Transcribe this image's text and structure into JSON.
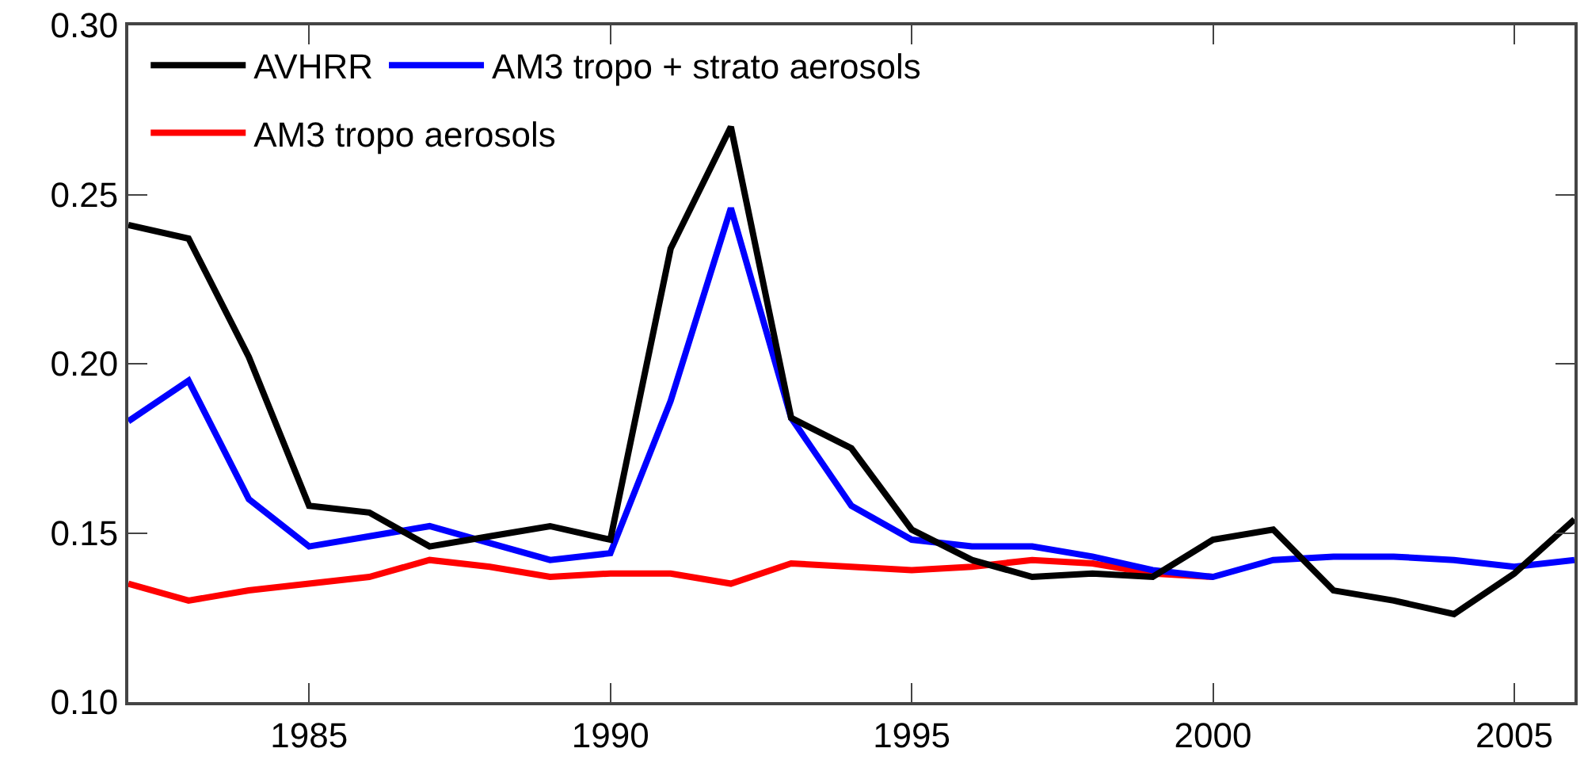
{
  "chart_data": {
    "type": "line",
    "x": [
      1982,
      1983,
      1984,
      1985,
      1986,
      1987,
      1988,
      1989,
      1990,
      1991,
      1992,
      1993,
      1994,
      1995,
      1996,
      1997,
      1998,
      1999,
      2000,
      2001,
      2002,
      2003,
      2004,
      2005,
      2006
    ],
    "series": [
      {
        "name": "AVHRR",
        "color": "#000000",
        "values": [
          0.241,
          0.237,
          0.202,
          0.158,
          0.156,
          0.146,
          0.149,
          0.152,
          0.148,
          0.234,
          0.27,
          0.184,
          0.175,
          0.151,
          0.142,
          0.137,
          0.138,
          0.137,
          0.148,
          0.151,
          0.133,
          0.13,
          0.126,
          0.138,
          0.154
        ]
      },
      {
        "name": "AM3 tropo + strato aerosols",
        "color": "#0000ff",
        "values": [
          0.183,
          0.195,
          0.16,
          0.146,
          0.149,
          0.152,
          0.147,
          0.142,
          0.144,
          0.189,
          0.246,
          0.184,
          0.158,
          0.148,
          0.146,
          0.146,
          0.143,
          0.139,
          0.137,
          0.142,
          0.143,
          0.143,
          0.142,
          0.14,
          0.142
        ]
      },
      {
        "name": "AM3 tropo aerosols",
        "color": "#ff0000",
        "values": [
          0.135,
          0.13,
          0.133,
          0.135,
          0.137,
          0.142,
          0.14,
          0.137,
          0.138,
          0.138,
          0.135,
          0.141,
          0.14,
          0.139,
          0.14,
          0.142,
          0.141,
          0.138,
          0.137,
          null,
          null,
          null,
          null,
          null,
          null
        ]
      }
    ],
    "xlim": [
      1982,
      2006
    ],
    "xticks": [
      1985,
      1990,
      1995,
      2000,
      2005
    ],
    "ylim": [
      0.1,
      0.3
    ],
    "yticks": [
      {
        "value": 0.1,
        "label": "0.10"
      },
      {
        "value": 0.15,
        "label": "0.15"
      },
      {
        "value": 0.2,
        "label": "0.20"
      },
      {
        "value": 0.25,
        "label": "0.25"
      },
      {
        "value": 0.3,
        "label": "0.30"
      }
    ],
    "grid": false,
    "legend": "top left",
    "marker": "none",
    "line_style": "solid"
  }
}
